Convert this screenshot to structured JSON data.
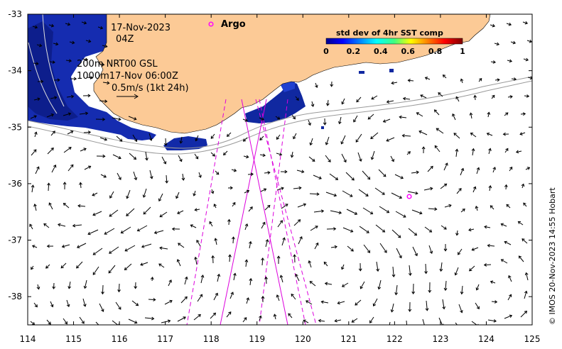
{
  "date_text": "17-Nov-2023",
  "hour_text": "04Z",
  "depth_line1": "200m  NRT00 GSL",
  "depth_line2": "1000m17-Nov 06:00Z",
  "scale_text": "0.5m/s (1kt 24h)",
  "argo_label": "Argo",
  "colorbar": {
    "title": "std dev of 4hr SST comp",
    "ticks": [
      "0",
      "0.2",
      "0.4",
      "0.6",
      "0.8",
      "1"
    ]
  },
  "x_axis": {
    "ticks": [
      "114",
      "115",
      "116",
      "117",
      "118",
      "119",
      "120",
      "121",
      "122",
      "123",
      "124",
      "125"
    ],
    "range": [
      114,
      125
    ]
  },
  "y_axis": {
    "ticks": [
      "-33",
      "-34",
      "-35",
      "-36",
      "-37",
      "-38"
    ],
    "range": [
      -38.5,
      -33
    ]
  },
  "footer_text": "© IMOS 20-Nov-2023 14:55 Hobart",
  "argo_float": {
    "lon": 122.3,
    "lat": -36.2
  },
  "colors": {
    "land": "#fcca96",
    "sst_high": "#1a2fc0",
    "sst_low": "#0a1d7e",
    "track": "#dd00dd",
    "isobath": "#9a9a9a",
    "argo": "#ff00ff"
  }
}
